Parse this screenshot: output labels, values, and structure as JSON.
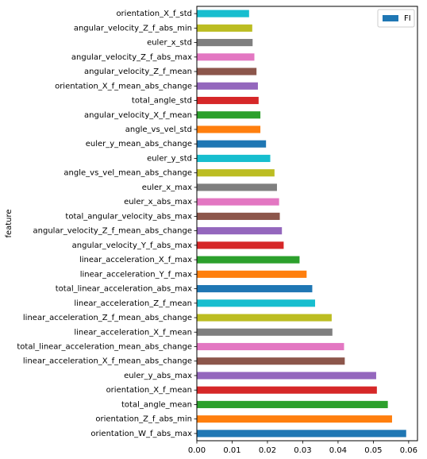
{
  "chart_data": {
    "type": "bar",
    "orientation": "horizontal",
    "ylabel": "feature",
    "xlabel": "",
    "xlim": [
      0,
      0.0625
    ],
    "xticks": [
      0.0,
      0.01,
      0.02,
      0.03,
      0.04,
      0.05,
      0.06
    ],
    "xtick_labels": [
      "0.00",
      "0.01",
      "0.02",
      "0.03",
      "0.04",
      "0.05",
      "0.06"
    ],
    "grid": false,
    "legend": {
      "placement": "top-right",
      "entries": [
        {
          "name": "FI",
          "color": "#1f77b4"
        }
      ]
    },
    "categories": [
      "orientation_W_f_abs_max",
      "orientation_Z_f_abs_min",
      "total_angle_mean",
      "orientation_X_f_mean",
      "euler_y_abs_max",
      "linear_acceleration_X_f_mean_abs_change",
      "total_linear_acceleration_mean_abs_change",
      "linear_acceleration_X_f_mean",
      "linear_acceleration_Z_f_mean_abs_change",
      "linear_acceleration_Z_f_mean",
      "total_linear_acceleration_abs_max",
      "linear_acceleration_Y_f_max",
      "linear_acceleration_X_f_max",
      "angular_velocity_Y_f_abs_max",
      "angular_velocity_Z_f_mean_abs_change",
      "total_angular_velocity_abs_max",
      "euler_x_abs_max",
      "euler_x_max",
      "angle_vs_vel_mean_abs_change",
      "euler_y_std",
      "euler_y_mean_abs_change",
      "angle_vs_vel_std",
      "angular_velocity_X_f_mean",
      "total_angle_std",
      "orientation_X_f_mean_abs_change",
      "angular_velocity_Z_f_mean",
      "angular_velocity_Z_f_abs_max",
      "euler_x_std",
      "angular_velocity_Z_f_abs_min",
      "orientation_X_f_std"
    ],
    "series": [
      {
        "name": "FI",
        "values": [
          0.0593,
          0.0553,
          0.0541,
          0.051,
          0.0508,
          0.0419,
          0.0417,
          0.0384,
          0.0382,
          0.0335,
          0.0327,
          0.0311,
          0.0291,
          0.0246,
          0.0241,
          0.0235,
          0.0233,
          0.0227,
          0.022,
          0.0208,
          0.0196,
          0.018,
          0.018,
          0.0175,
          0.0173,
          0.0169,
          0.0163,
          0.0158,
          0.0157,
          0.0148
        ]
      }
    ],
    "bar_colors": [
      "#1f77b4",
      "#ff7f0e",
      "#2ca02c",
      "#d62728",
      "#9467bd",
      "#8c564b",
      "#e377c2",
      "#7f7f7f",
      "#bcbd22",
      "#17becf"
    ]
  }
}
